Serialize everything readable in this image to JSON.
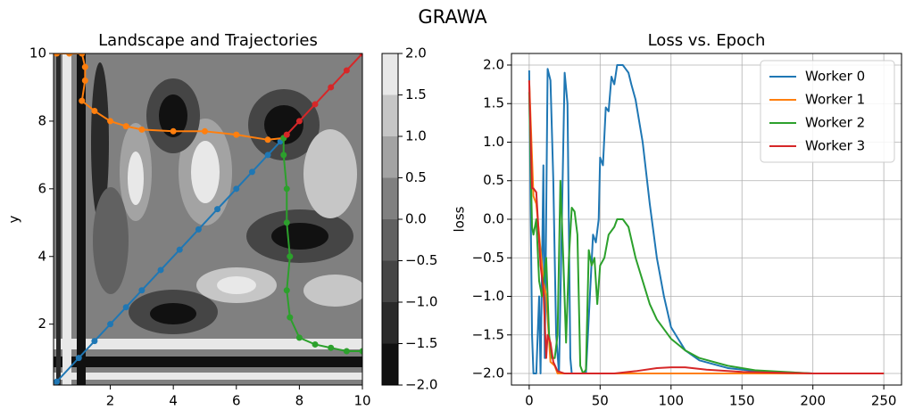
{
  "title": "GRAWA",
  "chart_data": [
    {
      "type": "contour",
      "title": "Landscape and Trajectories",
      "ylabel": "y",
      "xlim": [
        0.2,
        10
      ],
      "ylim": [
        0.2,
        10
      ],
      "xticks": [
        2,
        4,
        6,
        8,
        10
      ],
      "yticks": [
        2,
        4,
        6,
        8,
        10
      ],
      "marker": true,
      "series": [
        {
          "color": "#1f77b4",
          "x": [
            0.3,
            1.0,
            1.5,
            2.0,
            2.5,
            3.0,
            3.6,
            4.2,
            4.8,
            5.4,
            6.0,
            6.5,
            7.0,
            7.4
          ],
          "values": [
            0.3,
            1.0,
            1.5,
            2.0,
            2.5,
            3.0,
            3.6,
            4.2,
            4.8,
            5.4,
            6.0,
            6.5,
            7.0,
            7.4
          ]
        },
        {
          "color": "#ff7f0e",
          "x": [
            0.3,
            0.7,
            1.1,
            1.2,
            1.2,
            1.1,
            1.5,
            2.0,
            2.5,
            3.0,
            4.0,
            5.0,
            6.0,
            7.0,
            7.5
          ],
          "values": [
            10,
            10,
            10,
            9.6,
            9.2,
            8.6,
            8.3,
            8.0,
            7.85,
            7.75,
            7.7,
            7.7,
            7.6,
            7.45,
            7.5
          ]
        },
        {
          "color": "#2ca02c",
          "x": [
            10,
            9.5,
            9.0,
            8.5,
            8.0,
            7.7,
            7.6,
            7.7,
            7.6,
            7.6,
            7.5,
            7.5
          ],
          "values": [
            1.2,
            1.2,
            1.3,
            1.4,
            1.6,
            2.2,
            3.0,
            4.0,
            5.0,
            6.0,
            7.0,
            7.5
          ]
        },
        {
          "color": "#d62728",
          "x": [
            10,
            9.5,
            9.0,
            8.5,
            8.0,
            7.6
          ],
          "values": [
            10,
            9.5,
            9.0,
            8.5,
            8.0,
            7.6
          ]
        }
      ],
      "colorbar": {
        "lim": [
          -2,
          2
        ],
        "ticks": [
          {
            "value": -2,
            "label": "−2.0"
          },
          {
            "value": -1.5,
            "label": "−1.5"
          },
          {
            "value": -1,
            "label": "−1.0"
          },
          {
            "value": -0.5,
            "label": "−0.5"
          },
          {
            "value": 0,
            "label": "0.0"
          },
          0.5,
          {
            "value": 1,
            "label": "1.0"
          },
          1.5,
          {
            "value": 2,
            "label": "2.0"
          }
        ],
        "colors": [
          "#111111",
          "#2a2a2a",
          "#454545",
          "#616161",
          "#808080",
          "#a3a3a3",
          "#c6c6c6",
          "#e8e8e8"
        ]
      }
    },
    {
      "type": "line",
      "title": "Loss vs. Epoch",
      "ylabel": "loss",
      "grid": true,
      "legend": "upper right",
      "xlim": [
        -12.5,
        262.5
      ],
      "ylim": [
        -2.15,
        2.15
      ],
      "xticks": [
        0,
        50,
        100,
        150,
        200,
        250
      ],
      "yticks": [
        {
          "value": -2,
          "label": "−2.0"
        },
        {
          "value": -1.5,
          "label": "−1.5"
        },
        {
          "value": -1,
          "label": "−1.0"
        },
        {
          "value": -0.5,
          "label": "−0.5"
        },
        {
          "value": 0,
          "label": "0.0"
        },
        0.5,
        {
          "value": 1,
          "label": "1.0"
        },
        1.5,
        {
          "value": 2,
          "label": "2.0"
        }
      ],
      "series": [
        {
          "name": "Worker 0",
          "color": "#1f77b4",
          "x": [
            0,
            2,
            3,
            5,
            7,
            8,
            10,
            11,
            13,
            15,
            17,
            19,
            21,
            25,
            27,
            29,
            30,
            36,
            40,
            45,
            47,
            49,
            50,
            52,
            54,
            56,
            58,
            60,
            62,
            66,
            68,
            70,
            72,
            75,
            80,
            85,
            90,
            95,
            100,
            110,
            120,
            140,
            160,
            200,
            250
          ],
          "values": [
            1.93,
            -1.5,
            -2.0,
            -2.0,
            -1.0,
            -2.0,
            0.7,
            -1.8,
            1.95,
            1.8,
            0.5,
            -1.5,
            -2.0,
            1.9,
            1.5,
            -1.8,
            -2.0,
            -2.0,
            -2.0,
            -0.2,
            -0.3,
            0.0,
            0.8,
            0.7,
            1.45,
            1.4,
            1.85,
            1.75,
            2.0,
            2.0,
            1.95,
            1.9,
            1.75,
            1.55,
            1.0,
            0.2,
            -0.5,
            -1.0,
            -1.4,
            -1.7,
            -1.83,
            -1.93,
            -1.97,
            -2.0,
            -2.0
          ]
        },
        {
          "name": "Worker 1",
          "color": "#ff7f0e",
          "x": [
            0,
            3,
            5,
            7,
            10,
            12,
            15,
            18,
            20,
            30,
            100,
            250
          ],
          "values": [
            1.8,
            0.3,
            0.2,
            -0.2,
            -0.8,
            -1.0,
            -1.85,
            -1.9,
            -2.0,
            -2.0,
            -2.0,
            -2.0
          ]
        },
        {
          "name": "Worker 2",
          "color": "#2ca02c",
          "x": [
            0,
            2,
            3,
            4,
            5,
            7,
            9,
            12,
            14,
            16,
            18,
            20,
            22,
            24,
            26,
            28,
            30,
            32,
            34,
            36,
            38,
            40,
            42,
            44,
            46,
            48,
            50,
            53,
            56,
            60,
            62,
            66,
            70,
            75,
            80,
            85,
            90,
            100,
            110,
            120,
            140,
            160,
            200,
            250
          ],
          "values": [
            1.65,
            -0.1,
            -0.2,
            -0.1,
            0.0,
            -0.8,
            -1.0,
            -0.5,
            -1.5,
            -1.8,
            -1.8,
            -1.5,
            0.5,
            -0.5,
            -1.6,
            -0.5,
            0.15,
            0.1,
            -0.2,
            -1.9,
            -2.0,
            -1.95,
            -0.4,
            -0.6,
            -0.5,
            -1.1,
            -0.6,
            -0.5,
            -0.2,
            -0.1,
            0.0,
            0.0,
            -0.1,
            -0.5,
            -0.8,
            -1.1,
            -1.3,
            -1.55,
            -1.7,
            -1.8,
            -1.9,
            -1.96,
            -2.0,
            -2.0
          ]
        },
        {
          "name": "Worker 3",
          "color": "#d62728",
          "x": [
            0,
            2,
            3,
            5,
            8,
            10,
            12,
            13,
            15,
            17,
            20,
            25,
            40,
            60,
            75,
            90,
            100,
            110,
            125,
            150,
            200,
            250
          ],
          "values": [
            1.8,
            0.4,
            0.4,
            0.35,
            -0.6,
            -0.9,
            -1.8,
            -1.5,
            -1.6,
            -1.85,
            -1.97,
            -2.0,
            -2.0,
            -2.0,
            -1.97,
            -1.93,
            -1.92,
            -1.92,
            -1.95,
            -1.98,
            -2.0,
            -2.0
          ]
        }
      ]
    }
  ]
}
